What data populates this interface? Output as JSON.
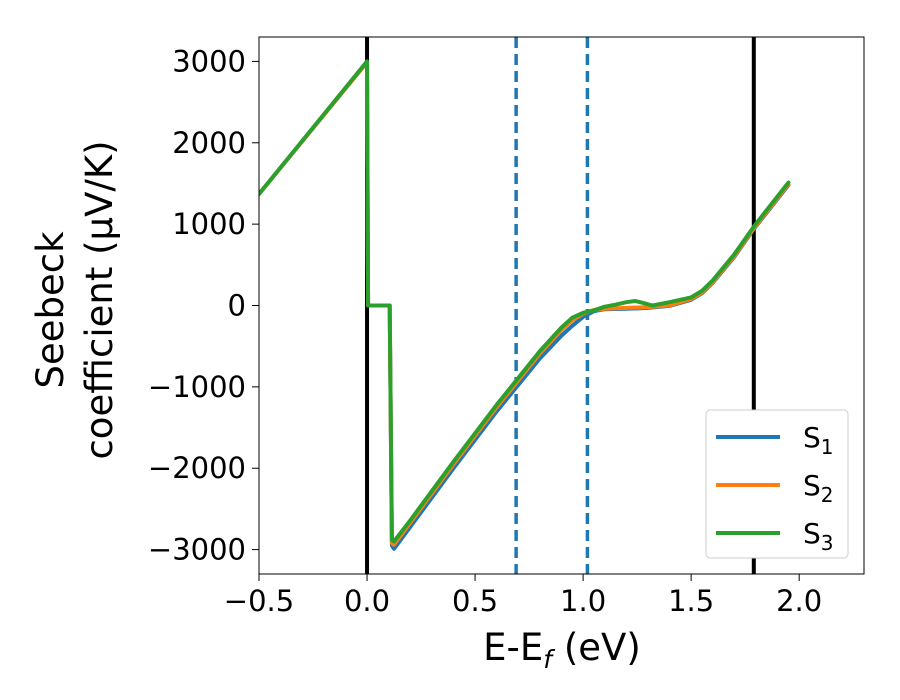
{
  "chart_data": {
    "type": "line",
    "xlabel": {
      "main": "E-E",
      "sub": "f",
      "unit": " (eV)"
    },
    "ylabel": {
      "line1": "Seebeck",
      "line2": "coefficient  (μV/K)"
    },
    "xlim": [
      -0.5,
      2.3
    ],
    "ylim": [
      -3300,
      3300
    ],
    "x_ticks": [
      {
        "value": -0.5,
        "label": "−0.5"
      },
      {
        "value": 0.0,
        "label": "0.0"
      },
      {
        "value": 0.5,
        "label": "0.5"
      },
      {
        "value": 1.0,
        "label": "1.0"
      },
      {
        "value": 1.5,
        "label": "1.5"
      },
      {
        "value": 2.0,
        "label": "2.0"
      }
    ],
    "y_ticks": [
      {
        "value": -3000,
        "label": "−3000"
      },
      {
        "value": -2000,
        "label": "−2000"
      },
      {
        "value": -1000,
        "label": "−1000"
      },
      {
        "value": 0,
        "label": "0"
      },
      {
        "value": 1000,
        "label": "1000"
      },
      {
        "value": 2000,
        "label": "2000"
      },
      {
        "value": 3000,
        "label": "3000"
      }
    ],
    "vlines": [
      {
        "x": 0.0,
        "style": "solid",
        "color": "#000000"
      },
      {
        "x": 1.79,
        "style": "solid",
        "color": "#000000"
      },
      {
        "x": 0.69,
        "style": "dashed",
        "color": "#1f77b4"
      },
      {
        "x": 1.02,
        "style": "dashed",
        "color": "#1f77b4"
      }
    ],
    "legend_position": "lower right",
    "series": [
      {
        "name": "S",
        "sub": "1",
        "color": "#1f77b4",
        "points": [
          [
            -0.5,
            1370
          ],
          [
            0.0,
            2990
          ],
          [
            0.005,
            0
          ],
          [
            0.105,
            0
          ],
          [
            0.115,
            -2950
          ],
          [
            0.125,
            -2990
          ],
          [
            0.2,
            -2720
          ],
          [
            0.4,
            -2000
          ],
          [
            0.6,
            -1300
          ],
          [
            0.8,
            -650
          ],
          [
            0.9,
            -370
          ],
          [
            0.95,
            -250
          ],
          [
            1.0,
            -140
          ],
          [
            1.05,
            -70
          ],
          [
            1.1,
            -45
          ],
          [
            1.2,
            -40
          ],
          [
            1.3,
            -30
          ],
          [
            1.4,
            -5
          ],
          [
            1.5,
            70
          ],
          [
            1.55,
            150
          ],
          [
            1.6,
            280
          ],
          [
            1.7,
            600
          ],
          [
            1.79,
            940
          ],
          [
            1.95,
            1480
          ]
        ]
      },
      {
        "name": "S",
        "sub": "2",
        "color": "#ff7f0e",
        "points": [
          [
            -0.5,
            1370
          ],
          [
            0.0,
            2990
          ],
          [
            0.005,
            0
          ],
          [
            0.105,
            0
          ],
          [
            0.115,
            -2920
          ],
          [
            0.125,
            -2940
          ],
          [
            0.2,
            -2670
          ],
          [
            0.4,
            -1950
          ],
          [
            0.6,
            -1250
          ],
          [
            0.8,
            -590
          ],
          [
            0.9,
            -300
          ],
          [
            0.95,
            -180
          ],
          [
            1.0,
            -100
          ],
          [
            1.05,
            -55
          ],
          [
            1.1,
            -40
          ],
          [
            1.2,
            -30
          ],
          [
            1.3,
            -20
          ],
          [
            1.4,
            0
          ],
          [
            1.5,
            80
          ],
          [
            1.55,
            160
          ],
          [
            1.6,
            290
          ],
          [
            1.7,
            610
          ],
          [
            1.79,
            950
          ],
          [
            1.95,
            1490
          ]
        ]
      },
      {
        "name": "S",
        "sub": "3",
        "color": "#2ca02c",
        "points": [
          [
            -0.5,
            1370
          ],
          [
            0.0,
            3000
          ],
          [
            0.005,
            0
          ],
          [
            0.105,
            0
          ],
          [
            0.115,
            -2880
          ],
          [
            0.125,
            -2900
          ],
          [
            0.2,
            -2640
          ],
          [
            0.4,
            -1920
          ],
          [
            0.6,
            -1220
          ],
          [
            0.8,
            -560
          ],
          [
            0.9,
            -270
          ],
          [
            0.95,
            -150
          ],
          [
            1.0,
            -90
          ],
          [
            1.05,
            -60
          ],
          [
            1.1,
            -15
          ],
          [
            1.15,
            10
          ],
          [
            1.2,
            40
          ],
          [
            1.24,
            55
          ],
          [
            1.28,
            30
          ],
          [
            1.32,
            0
          ],
          [
            1.4,
            40
          ],
          [
            1.5,
            100
          ],
          [
            1.55,
            180
          ],
          [
            1.6,
            310
          ],
          [
            1.7,
            630
          ],
          [
            1.79,
            970
          ],
          [
            1.95,
            1510
          ]
        ]
      }
    ]
  }
}
